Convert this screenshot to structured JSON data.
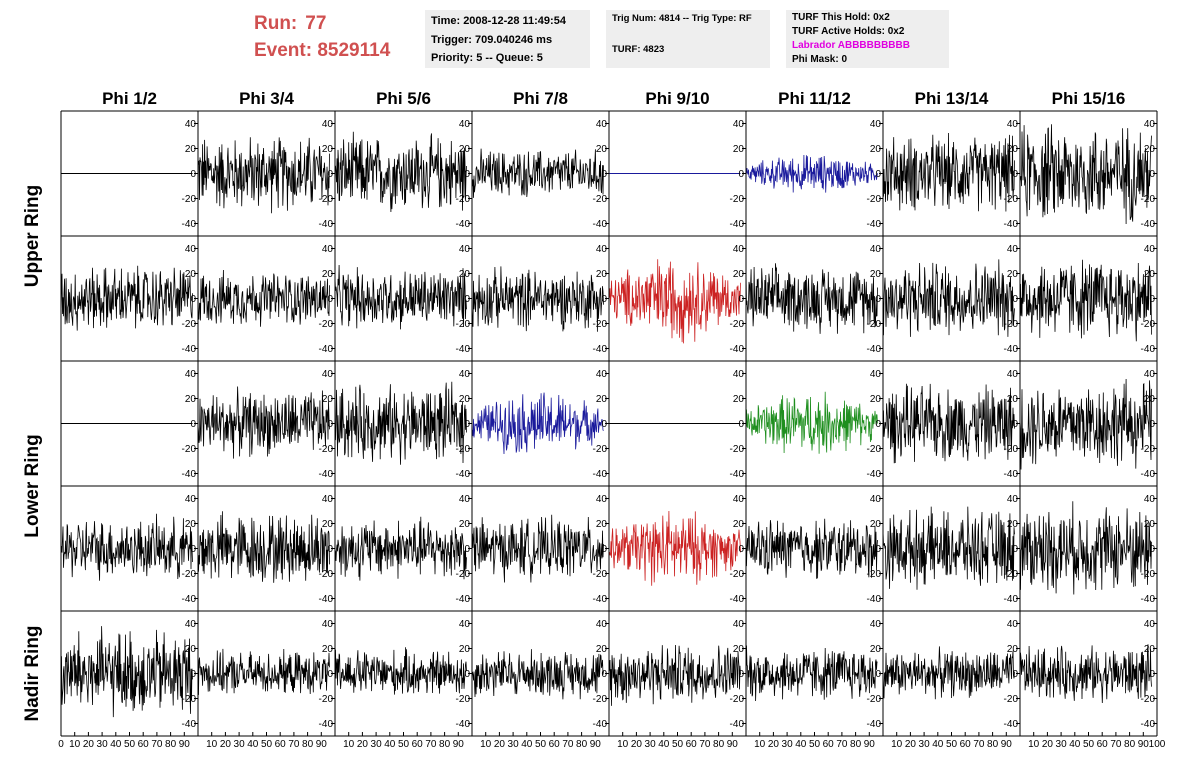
{
  "header": {
    "run_label": "Run:",
    "run_value": "77",
    "event_label": "Event:",
    "event_value": "8529114"
  },
  "info": {
    "time": "Time: 2008-12-28 11:49:54",
    "trigger": "Trigger: 709.040246 ms",
    "priority": "Priority: 5 -- Queue: 5",
    "trig_num": "Trig Num: 4814 -- Trig Type: RF",
    "turf": "TURF: 4823",
    "turf_this_hold": "TURF This Hold: 0x2",
    "turf_active_holds": "TURF Active Holds: 0x2",
    "labrador": "Labrador ABBBBBBBBB",
    "phi_mask": "Phi Mask: 0"
  },
  "colors": {
    "header_red": "#d05050",
    "trace_black": "#000000",
    "trace_blue": "#1a1a9c",
    "trace_red": "#cc2222",
    "trace_green": "#1f8f1f",
    "labrador_magenta": "#e000e0",
    "info_bg": "#eeeeee"
  },
  "chart_data": {
    "type": "line",
    "columns": [
      "Phi 1/2",
      "Phi 3/4",
      "Phi 5/6",
      "Phi 7/8",
      "Phi 9/10",
      "Phi 11/12",
      "Phi 13/14",
      "Phi 15/16"
    ],
    "ring_labels": [
      {
        "name": "Upper Ring",
        "rows": [
          0,
          1
        ]
      },
      {
        "name": "Lower Ring",
        "rows": [
          2,
          3
        ]
      },
      {
        "name": "Nadir Ring",
        "rows": [
          4
        ]
      }
    ],
    "ylim": [
      -50,
      50
    ],
    "y_ticks": [
      40,
      20,
      0,
      -20,
      -40
    ],
    "xlim": [
      0,
      100
    ],
    "x_ticks": [
      0,
      10,
      20,
      30,
      40,
      50,
      60,
      70,
      80,
      90,
      100
    ],
    "samples_per_trace": 260,
    "trace_x_range": [
      0,
      96
    ],
    "rows": [
      [
        {
          "color": "black",
          "amp": 0
        },
        {
          "color": "black",
          "amp": 35
        },
        {
          "color": "black",
          "amp": 35
        },
        {
          "color": "black",
          "amp": 22
        },
        {
          "color": "blue",
          "amp": 0
        },
        {
          "color": "blue",
          "amp": 18,
          "envelope": true
        },
        {
          "color": "black",
          "amp": 35
        },
        {
          "color": "black",
          "amp": 45
        }
      ],
      [
        {
          "color": "black",
          "amp": 30
        },
        {
          "color": "black",
          "amp": 25
        },
        {
          "color": "black",
          "amp": 28
        },
        {
          "color": "black",
          "amp": 28
        },
        {
          "color": "red",
          "amp": 40,
          "envelope": true
        },
        {
          "color": "black",
          "amp": 30
        },
        {
          "color": "black",
          "amp": 35
        },
        {
          "color": "black",
          "amp": 38
        }
      ],
      [
        {
          "color": "black",
          "amp": 0
        },
        {
          "color": "black",
          "amp": 30
        },
        {
          "color": "black",
          "amp": 35
        },
        {
          "color": "blue",
          "amp": 30,
          "envelope": true
        },
        {
          "color": "black",
          "amp": 0
        },
        {
          "color": "green",
          "amp": 30,
          "envelope": true
        },
        {
          "color": "black",
          "amp": 35
        },
        {
          "color": "black",
          "amp": 40
        }
      ],
      [
        {
          "color": "black",
          "amp": 28
        },
        {
          "color": "black",
          "amp": 33
        },
        {
          "color": "black",
          "amp": 28
        },
        {
          "color": "black",
          "amp": 28
        },
        {
          "color": "red",
          "amp": 35,
          "envelope": true
        },
        {
          "color": "black",
          "amp": 28
        },
        {
          "color": "black",
          "amp": 35
        },
        {
          "color": "black",
          "amp": 40
        }
      ],
      [
        {
          "color": "black",
          "amp": 40
        },
        {
          "color": "black",
          "amp": 20
        },
        {
          "color": "black",
          "amp": 22
        },
        {
          "color": "black",
          "amp": 22
        },
        {
          "color": "black",
          "amp": 28
        },
        {
          "color": "black",
          "amp": 25
        },
        {
          "color": "black",
          "amp": 22
        },
        {
          "color": "black",
          "amp": 25
        }
      ]
    ]
  }
}
